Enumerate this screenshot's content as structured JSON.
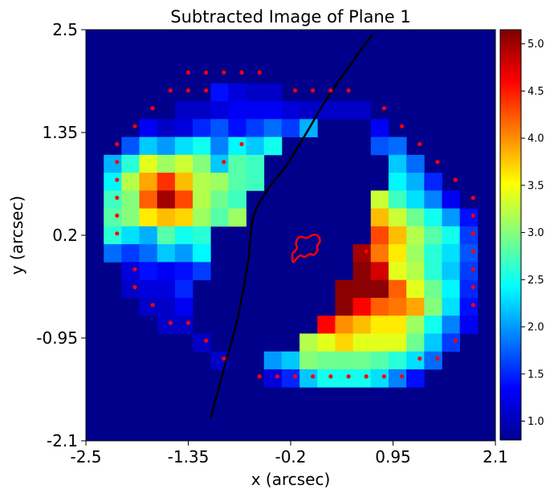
{
  "chart_data": {
    "type": "heatmap",
    "title": "Subtracted Image of Plane 1",
    "xlabel": "x (arcsec)",
    "ylabel": "y (arcsec)",
    "xlim": [
      -2.5,
      2.1
    ],
    "ylim": [
      -2.1,
      2.5
    ],
    "xticks": [
      "-2.5",
      "-1.35",
      "-0.2",
      "0.95",
      "2.1"
    ],
    "yticks": [
      "2.5",
      "1.35",
      "0.2",
      "-0.95",
      "-2.1"
    ],
    "colorbar": {
      "colormap": "jet",
      "range": [
        0.8,
        5.15
      ],
      "ticks": [
        "1.0",
        "1.5",
        "2.0",
        "2.5",
        "3.0",
        "3.5",
        "4.0",
        "4.5",
        "5.0"
      ]
    },
    "background_value": 0.85,
    "grid_shape": [
      23,
      23
    ],
    "pixel_size_arcsec": 0.2,
    "pixels": [
      [
        3,
        7,
        1.4
      ],
      [
        3,
        8,
        1.2
      ],
      [
        3,
        9,
        1.1
      ],
      [
        3,
        10,
        1.1
      ],
      [
        4,
        5,
        1.1
      ],
      [
        4,
        6,
        1.1
      ],
      [
        4,
        7,
        1.2
      ],
      [
        4,
        8,
        1.3
      ],
      [
        4,
        9,
        1.3
      ],
      [
        4,
        10,
        1.3
      ],
      [
        4,
        11,
        1.2
      ],
      [
        4,
        12,
        1.1
      ],
      [
        4,
        13,
        1.1
      ],
      [
        4,
        14,
        1.1
      ],
      [
        4,
        15,
        1.1
      ],
      [
        5,
        3,
        1.3
      ],
      [
        5,
        4,
        1.1
      ],
      [
        5,
        5,
        1.2
      ],
      [
        5,
        6,
        1.5
      ],
      [
        5,
        7,
        1.7
      ],
      [
        5,
        8,
        1.4
      ],
      [
        5,
        9,
        1.6
      ],
      [
        5,
        10,
        1.8
      ],
      [
        5,
        11,
        1.6
      ],
      [
        5,
        12,
        2.1
      ],
      [
        5,
        16,
        1.3
      ],
      [
        6,
        2,
        1.7
      ],
      [
        6,
        3,
        2.2
      ],
      [
        6,
        4,
        2.0
      ],
      [
        6,
        5,
        2.3
      ],
      [
        6,
        6,
        2.5
      ],
      [
        6,
        7,
        1.9
      ],
      [
        6,
        8,
        2.4
      ],
      [
        6,
        9,
        2.2
      ],
      [
        6,
        10,
        2.5
      ],
      [
        6,
        16,
        1.7
      ],
      [
        6,
        17,
        1.8
      ],
      [
        7,
        1,
        2.1
      ],
      [
        7,
        2,
        2.6
      ],
      [
        7,
        3,
        3.4
      ],
      [
        7,
        4,
        3.1
      ],
      [
        7,
        5,
        3.3
      ],
      [
        7,
        6,
        3.0
      ],
      [
        7,
        7,
        2.2
      ],
      [
        7,
        8,
        2.8
      ],
      [
        7,
        9,
        2.7
      ],
      [
        7,
        17,
        2.2
      ],
      [
        7,
        18,
        1.8
      ],
      [
        8,
        1,
        2.4
      ],
      [
        8,
        2,
        3.2
      ],
      [
        8,
        3,
        3.9
      ],
      [
        8,
        4,
        4.4
      ],
      [
        8,
        5,
        3.8
      ],
      [
        8,
        6,
        3.2
      ],
      [
        8,
        7,
        3.1
      ],
      [
        8,
        8,
        2.8
      ],
      [
        8,
        9,
        2.7
      ],
      [
        8,
        17,
        2.4
      ],
      [
        8,
        18,
        2.1
      ],
      [
        8,
        19,
        1.5
      ],
      [
        9,
        1,
        2.7
      ],
      [
        9,
        2,
        3.0
      ],
      [
        9,
        3,
        4.2
      ],
      [
        9,
        4,
        5.0
      ],
      [
        9,
        5,
        4.3
      ],
      [
        9,
        6,
        3.2
      ],
      [
        9,
        7,
        2.9
      ],
      [
        9,
        8,
        2.7
      ],
      [
        9,
        16,
        3.3
      ],
      [
        9,
        17,
        2.7
      ],
      [
        9,
        18,
        2.3
      ],
      [
        9,
        19,
        1.9
      ],
      [
        9,
        20,
        1.3
      ],
      [
        10,
        1,
        2.8
      ],
      [
        10,
        2,
        3.0
      ],
      [
        10,
        3,
        3.6
      ],
      [
        10,
        4,
        3.8
      ],
      [
        10,
        5,
        3.7
      ],
      [
        10,
        6,
        3.1
      ],
      [
        10,
        7,
        2.8
      ],
      [
        10,
        8,
        3.1
      ],
      [
        10,
        16,
        3.8
      ],
      [
        10,
        17,
        3.3
      ],
      [
        10,
        18,
        2.9
      ],
      [
        10,
        19,
        2.5
      ],
      [
        10,
        20,
        2.0
      ],
      [
        10,
        21,
        1.4
      ],
      [
        11,
        1,
        2.6
      ],
      [
        11,
        2,
        2.3
      ],
      [
        11,
        3,
        2.1
      ],
      [
        11,
        4,
        2.8
      ],
      [
        11,
        5,
        2.5
      ],
      [
        11,
        6,
        2.6
      ],
      [
        11,
        16,
        4.3
      ],
      [
        11,
        17,
        3.8
      ],
      [
        11,
        18,
        3.2
      ],
      [
        11,
        19,
        2.8
      ],
      [
        11,
        20,
        2.5
      ],
      [
        11,
        21,
        1.6
      ],
      [
        12,
        1,
        1.8
      ],
      [
        12,
        2,
        1.6
      ],
      [
        12,
        3,
        1.8
      ],
      [
        12,
        4,
        2.2
      ],
      [
        12,
        5,
        2.0
      ],
      [
        12,
        6,
        2.4
      ],
      [
        12,
        15,
        5.0
      ],
      [
        12,
        16,
        4.1
      ],
      [
        12,
        17,
        3.6
      ],
      [
        12,
        18,
        3.1
      ],
      [
        12,
        19,
        2.6
      ],
      [
        12,
        20,
        2.3
      ],
      [
        12,
        21,
        1.7
      ],
      [
        13,
        2,
        1.2
      ],
      [
        13,
        3,
        1.4
      ],
      [
        13,
        4,
        1.3
      ],
      [
        13,
        5,
        1.4
      ],
      [
        13,
        6,
        1.6
      ],
      [
        13,
        15,
        5.1
      ],
      [
        13,
        16,
        4.8
      ],
      [
        13,
        17,
        3.4
      ],
      [
        13,
        18,
        3.2
      ],
      [
        13,
        19,
        2.6
      ],
      [
        13,
        20,
        2.2
      ],
      [
        13,
        21,
        1.6
      ],
      [
        14,
        2,
        1.1
      ],
      [
        14,
        3,
        1.2
      ],
      [
        14,
        4,
        1.2
      ],
      [
        14,
        5,
        1.5
      ],
      [
        14,
        14,
        5.1
      ],
      [
        14,
        15,
        5.1
      ],
      [
        14,
        16,
        5.1
      ],
      [
        14,
        17,
        4.2
      ],
      [
        14,
        18,
        3.4
      ],
      [
        14,
        19,
        2.9
      ],
      [
        14,
        20,
        2.4
      ],
      [
        14,
        21,
        1.5
      ],
      [
        15,
        3,
        1.1
      ],
      [
        15,
        4,
        1.1
      ],
      [
        15,
        5,
        1.3
      ],
      [
        15,
        14,
        5.1
      ],
      [
        15,
        15,
        4.6
      ],
      [
        15,
        16,
        4.2
      ],
      [
        15,
        17,
        4.1
      ],
      [
        15,
        18,
        3.9
      ],
      [
        15,
        19,
        3.0
      ],
      [
        15,
        20,
        2.3
      ],
      [
        15,
        21,
        1.4
      ],
      [
        16,
        4,
        1.1
      ],
      [
        16,
        5,
        1.1
      ],
      [
        16,
        13,
        4.6
      ],
      [
        16,
        14,
        4.0
      ],
      [
        16,
        15,
        3.8
      ],
      [
        16,
        16,
        3.6
      ],
      [
        16,
        17,
        3.6
      ],
      [
        16,
        18,
        3.1
      ],
      [
        16,
        19,
        2.5
      ],
      [
        16,
        20,
        1.9
      ],
      [
        16,
        21,
        1.3
      ],
      [
        17,
        6,
        1.1
      ],
      [
        17,
        12,
        3.2
      ],
      [
        17,
        13,
        3.4
      ],
      [
        17,
        14,
        3.7
      ],
      [
        17,
        15,
        3.4
      ],
      [
        17,
        16,
        3.4
      ],
      [
        17,
        17,
        3.4
      ],
      [
        17,
        18,
        2.9
      ],
      [
        17,
        19,
        2.2
      ],
      [
        17,
        20,
        1.6
      ],
      [
        18,
        7,
        1.1
      ],
      [
        18,
        10,
        2.0
      ],
      [
        18,
        11,
        2.2
      ],
      [
        18,
        12,
        3.0
      ],
      [
        18,
        13,
        2.9
      ],
      [
        18,
        14,
        2.9
      ],
      [
        18,
        15,
        2.9
      ],
      [
        18,
        16,
        2.8
      ],
      [
        18,
        17,
        2.6
      ],
      [
        18,
        18,
        2.3
      ],
      [
        18,
        19,
        1.8
      ],
      [
        19,
        10,
        1.2
      ],
      [
        19,
        11,
        1.5
      ],
      [
        19,
        12,
        2.2
      ],
      [
        19,
        13,
        2.5
      ],
      [
        19,
        14,
        2.5
      ],
      [
        19,
        15,
        2.5
      ],
      [
        19,
        16,
        2.3
      ],
      [
        19,
        17,
        1.9
      ],
      [
        19,
        18,
        1.4
      ]
    ],
    "red_dots": [
      [
        -1.35,
        2.02
      ],
      [
        -1.15,
        2.02
      ],
      [
        -0.95,
        2.02
      ],
      [
        -0.75,
        2.02
      ],
      [
        -0.55,
        2.02
      ],
      [
        -1.55,
        1.82
      ],
      [
        -1.35,
        1.82
      ],
      [
        -1.15,
        1.82
      ],
      [
        -0.15,
        1.82
      ],
      [
        0.05,
        1.82
      ],
      [
        0.25,
        1.82
      ],
      [
        0.45,
        1.82
      ],
      [
        -1.75,
        1.62
      ],
      [
        0.85,
        1.62
      ],
      [
        -1.95,
        1.42
      ],
      [
        1.05,
        1.42
      ],
      [
        -2.15,
        1.22
      ],
      [
        -0.75,
        1.22
      ],
      [
        1.25,
        1.22
      ],
      [
        -2.15,
        1.02
      ],
      [
        -0.95,
        1.02
      ],
      [
        1.45,
        1.02
      ],
      [
        -2.15,
        0.82
      ],
      [
        1.65,
        0.82
      ],
      [
        -2.15,
        0.62
      ],
      [
        1.85,
        0.62
      ],
      [
        -2.15,
        0.42
      ],
      [
        1.85,
        0.42
      ],
      [
        -2.15,
        0.22
      ],
      [
        0.65,
        0.02
      ],
      [
        1.85,
        0.22
      ],
      [
        -1.95,
        -0.18
      ],
      [
        1.85,
        0.02
      ],
      [
        -1.95,
        -0.38
      ],
      [
        1.85,
        -0.18
      ],
      [
        -1.75,
        -0.58
      ],
      [
        1.85,
        -0.38
      ],
      [
        -1.55,
        -0.78
      ],
      [
        -1.35,
        -0.78
      ],
      [
        1.85,
        -0.58
      ],
      [
        -1.15,
        -0.98
      ],
      [
        1.65,
        -0.98
      ],
      [
        -0.95,
        -1.18
      ],
      [
        1.25,
        -1.18
      ],
      [
        1.45,
        -1.18
      ],
      [
        -0.55,
        -1.38
      ],
      [
        -0.35,
        -1.38
      ],
      [
        -0.15,
        -1.38
      ],
      [
        0.05,
        -1.38
      ],
      [
        0.25,
        -1.38
      ],
      [
        0.45,
        -1.38
      ],
      [
        0.65,
        -1.38
      ],
      [
        0.85,
        -1.38
      ],
      [
        1.05,
        -1.38
      ]
    ],
    "black_curve": [
      [
        -1.1,
        -1.85
      ],
      [
        -0.95,
        -1.3
      ],
      [
        -0.8,
        -0.75
      ],
      [
        -0.68,
        -0.1
      ],
      [
        -0.62,
        0.4
      ],
      [
        -0.45,
        0.72
      ],
      [
        -0.25,
        0.98
      ],
      [
        -0.05,
        1.3
      ],
      [
        0.22,
        1.75
      ],
      [
        0.5,
        2.15
      ],
      [
        0.72,
        2.45
      ]
    ],
    "red_curve": [
      [
        -0.18,
        0.0
      ],
      [
        -0.13,
        0.05
      ],
      [
        -0.14,
        0.12
      ],
      [
        -0.1,
        0.18
      ],
      [
        -0.02,
        0.17
      ],
      [
        0.04,
        0.2
      ],
      [
        0.1,
        0.2
      ],
      [
        0.13,
        0.14
      ],
      [
        0.1,
        0.08
      ],
      [
        0.1,
        0.03
      ],
      [
        0.06,
        -0.02
      ],
      [
        0.02,
        -0.01
      ],
      [
        -0.04,
        -0.04
      ],
      [
        -0.1,
        -0.03
      ],
      [
        -0.17,
        -0.1
      ],
      [
        -0.18,
        -0.04
      ],
      [
        -0.18,
        0.0
      ]
    ]
  }
}
